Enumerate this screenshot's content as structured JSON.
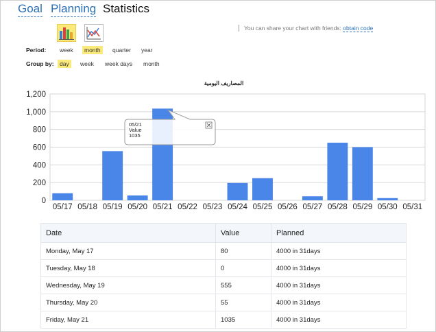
{
  "tabs": [
    {
      "label": "Goal",
      "active": false
    },
    {
      "label": "Planning",
      "active": false
    },
    {
      "label": "Statistics",
      "active": true
    }
  ],
  "chart_type_buttons": [
    {
      "icon": "bar-chart-icon",
      "selected": true
    },
    {
      "icon": "line-chart-icon",
      "selected": false
    }
  ],
  "share": {
    "text": "You can share your chart with friends:",
    "link": "obtain code"
  },
  "period": {
    "label": "Period:",
    "options": [
      "week",
      "month",
      "quarter",
      "year"
    ],
    "selected": "month"
  },
  "group_by": {
    "label": "Group by:",
    "options": [
      "day",
      "week",
      "week days",
      "month"
    ],
    "selected": "day"
  },
  "tooltip": {
    "date": "05/21",
    "label": "Value",
    "value": "1035"
  },
  "chart_data": {
    "type": "bar",
    "title": "المصاريف اليومية",
    "categories": [
      "05/17",
      "05/18",
      "05/19",
      "05/20",
      "05/21",
      "05/22",
      "05/23",
      "05/24",
      "05/25",
      "05/26",
      "05/27",
      "05/28",
      "05/29",
      "05/30",
      "05/31"
    ],
    "values": [
      80,
      0,
      555,
      55,
      1035,
      0,
      0,
      195,
      250,
      0,
      45,
      650,
      600,
      25,
      0
    ],
    "ylim": [
      0,
      1200
    ],
    "yticks": [
      0,
      200,
      400,
      600,
      800,
      1000,
      1200
    ],
    "ytick_labels": [
      "0",
      "200",
      "400",
      "600",
      "800",
      "1,000",
      "1,200"
    ],
    "bar_color": "#4a86e8",
    "grid": true,
    "legend": "none"
  },
  "table": {
    "headers": [
      "Date",
      "Value",
      "Planned"
    ],
    "rows": [
      [
        "Monday, May 17",
        "80",
        "4000 in 31days"
      ],
      [
        "Tuesday, May 18",
        "0",
        "4000 in 31days"
      ],
      [
        "Wednesday, May 19",
        "555",
        "4000 in 31days"
      ],
      [
        "Thursday, May 20",
        "55",
        "4000 in 31days"
      ],
      [
        "Friday, May 21",
        "1035",
        "4000 in 31days"
      ]
    ]
  }
}
